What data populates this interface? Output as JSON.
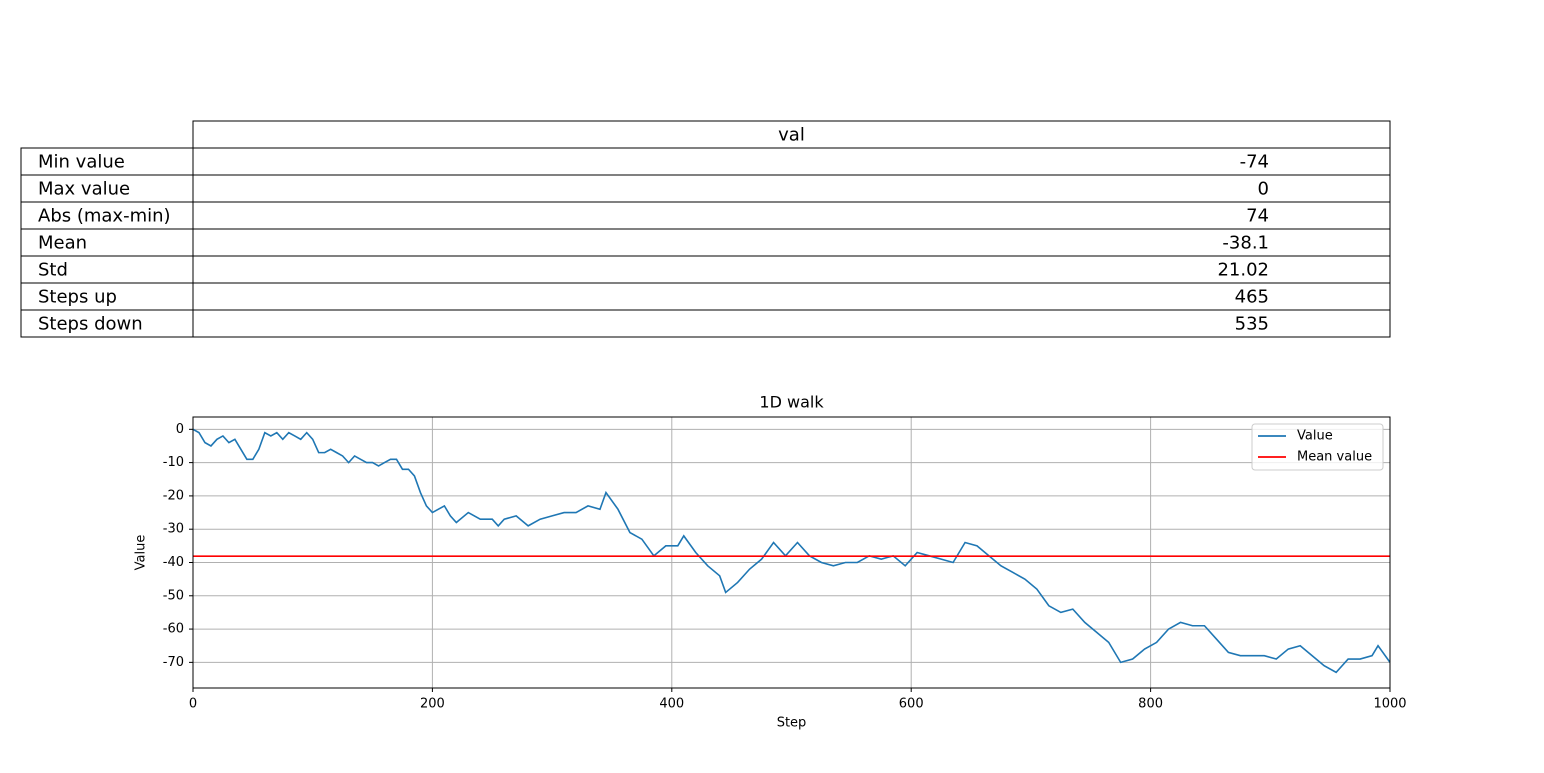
{
  "table": {
    "columns": [
      "val"
    ],
    "rows": [
      {
        "label": "Min value",
        "value": -74
      },
      {
        "label": "Max value",
        "value": 0
      },
      {
        "label": "Abs (max-min)",
        "value": 74
      },
      {
        "label": "Mean",
        "value": -38.1
      },
      {
        "label": "Std",
        "value": 21.02
      },
      {
        "label": "Steps up",
        "value": 465
      },
      {
        "label": "Steps down",
        "value": 535
      }
    ]
  },
  "chart_data": {
    "type": "line",
    "title": "1D walk",
    "xlabel": "Step",
    "ylabel": "Value",
    "x": [
      0,
      5,
      10,
      15,
      20,
      25,
      30,
      35,
      40,
      45,
      50,
      55,
      60,
      65,
      70,
      75,
      80,
      85,
      90,
      95,
      100,
      105,
      110,
      115,
      120,
      125,
      130,
      135,
      140,
      145,
      150,
      155,
      160,
      165,
      170,
      175,
      180,
      185,
      190,
      195,
      200,
      210,
      215,
      220,
      230,
      240,
      250,
      255,
      260,
      270,
      280,
      290,
      300,
      310,
      320,
      330,
      340,
      345,
      355,
      365,
      375,
      385,
      395,
      405,
      410,
      420,
      430,
      440,
      445,
      455,
      465,
      475,
      485,
      495,
      505,
      515,
      525,
      535,
      545,
      555,
      565,
      575,
      585,
      595,
      605,
      615,
      625,
      635,
      645,
      655,
      665,
      675,
      685,
      695,
      705,
      715,
      725,
      735,
      745,
      755,
      765,
      775,
      785,
      795,
      805,
      815,
      825,
      835,
      845,
      855,
      865,
      875,
      885,
      895,
      905,
      915,
      925,
      935,
      945,
      955,
      965,
      975,
      985,
      990,
      1000
    ],
    "series": [
      {
        "name": "Value",
        "color": "#1f77b4",
        "values": [
          0,
          -1,
          -4,
          -5,
          -3,
          -2,
          -4,
          -3,
          -6,
          -9,
          -9,
          -6,
          -1,
          -2,
          -1,
          -3,
          -1,
          -2,
          -3,
          -1,
          -3,
          -7,
          -7,
          -6,
          -7,
          -8,
          -10,
          -8,
          -9,
          -10,
          -10,
          -11,
          -10,
          -9,
          -9,
          -12,
          -12,
          -14,
          -19,
          -23,
          -25,
          -23,
          -26,
          -28,
          -25,
          -27,
          -27,
          -29,
          -27,
          -26,
          -29,
          -27,
          -26,
          -25,
          -25,
          -23,
          -24,
          -19,
          -24,
          -31,
          -33,
          -38,
          -35,
          -35,
          -32,
          -37,
          -41,
          -44,
          -49,
          -46,
          -42,
          -39,
          -34,
          -38,
          -34,
          -38,
          -40,
          -41,
          -40,
          -40,
          -38,
          -39,
          -38,
          -41,
          -37,
          -38,
          -39,
          -40,
          -34,
          -35,
          -38,
          -41,
          -43,
          -45,
          -48,
          -53,
          -55,
          -54,
          -58,
          -61,
          -64,
          -70,
          -69,
          -66,
          -64,
          -60,
          -58,
          -59,
          -59,
          -63,
          -67,
          -68,
          -68,
          -68,
          -69,
          -66,
          -65,
          -68,
          -71,
          -73,
          -69,
          -69,
          -68,
          -65,
          -70
        ]
      }
    ],
    "hlines": [
      {
        "name": "Mean value",
        "color": "#ff0000",
        "value": -38.1
      }
    ],
    "xlim": [
      0,
      1000
    ],
    "xticks": [
      0,
      200,
      400,
      600,
      800,
      1000
    ],
    "ylim": [
      -77.7,
      3.7
    ],
    "yticks": [
      0,
      -10,
      -20,
      -30,
      -40,
      -50,
      -60,
      -70
    ],
    "grid": true,
    "legend": "upper right"
  }
}
